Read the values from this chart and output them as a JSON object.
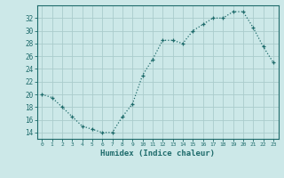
{
  "x": [
    0,
    1,
    2,
    3,
    4,
    5,
    6,
    7,
    8,
    9,
    10,
    11,
    12,
    13,
    14,
    15,
    16,
    17,
    18,
    19,
    20,
    21,
    22,
    23
  ],
  "y": [
    20,
    19.5,
    18,
    16.5,
    15,
    14.5,
    14,
    14,
    16.5,
    18.5,
    23,
    25.5,
    28.5,
    28.5,
    28,
    30,
    31,
    32,
    32,
    33,
    33,
    30.5,
    27.5,
    25
  ],
  "line_color": "#1e6b6b",
  "bg_color": "#cce8e8",
  "grid_color": "#aacccc",
  "xlabel": "Humidex (Indice chaleur)",
  "yticks": [
    14,
    16,
    18,
    20,
    22,
    24,
    26,
    28,
    30,
    32
  ],
  "xticks": [
    0,
    1,
    2,
    3,
    4,
    5,
    6,
    7,
    8,
    9,
    10,
    11,
    12,
    13,
    14,
    15,
    16,
    17,
    18,
    19,
    20,
    21,
    22,
    23
  ],
  "ylim": [
    13.0,
    34.0
  ],
  "xlim": [
    -0.5,
    23.5
  ]
}
